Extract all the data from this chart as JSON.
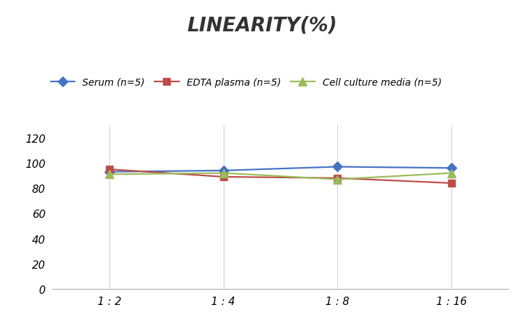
{
  "title": "LINEARITY(%)",
  "x_labels": [
    "1 : 2",
    "1 : 4",
    "1 : 8",
    "1 : 16"
  ],
  "x_positions": [
    0,
    1,
    2,
    3
  ],
  "series": [
    {
      "name": "Serum (n=5)",
      "values": [
        93,
        94,
        97,
        96
      ],
      "color": "#4472C4",
      "marker": "D",
      "marker_size": 7,
      "linewidth": 1.6
    },
    {
      "name": "EDTA plasma (n=5)",
      "values": [
        95,
        89,
        88,
        84
      ],
      "color": "#BE4B48",
      "marker": "s",
      "marker_size": 7,
      "linewidth": 1.6
    },
    {
      "name": "Cell culture media (n=5)",
      "values": [
        91,
        92,
        87,
        92
      ],
      "color": "#9BBB59",
      "marker": "^",
      "marker_size": 8,
      "linewidth": 1.6
    }
  ],
  "ylim": [
    0,
    130
  ],
  "yticks": [
    0,
    20,
    40,
    60,
    80,
    100,
    120
  ],
  "background_color": "#ffffff",
  "title_fontsize": 20,
  "legend_fontsize": 10,
  "tick_fontsize": 11
}
